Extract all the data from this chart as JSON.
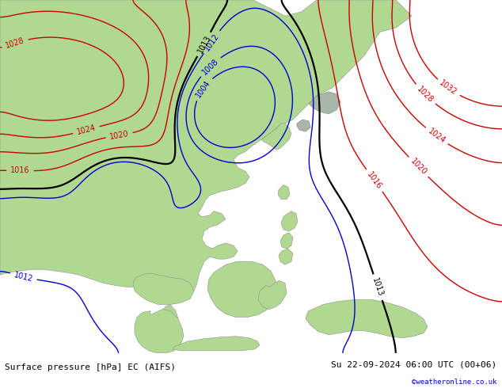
{
  "title_left": "Surface pressure [hPa] EC (AIFS)",
  "title_right": "Su 22-09-2024 06:00 UTC (00+06)",
  "copyright": "©weatheronline.co.uk",
  "bg_ocean": "#c8d4dc",
  "land_green": "#b0d890",
  "land_gray": "#a8b8a8",
  "fig_width": 6.34,
  "fig_height": 4.9,
  "dpi": 100,
  "footer_bg": "#f0f0f0",
  "c_black": "#000000",
  "c_blue": "#0000cc",
  "c_red": "#cc0000",
  "lf": 7.0,
  "ff": 8.0
}
